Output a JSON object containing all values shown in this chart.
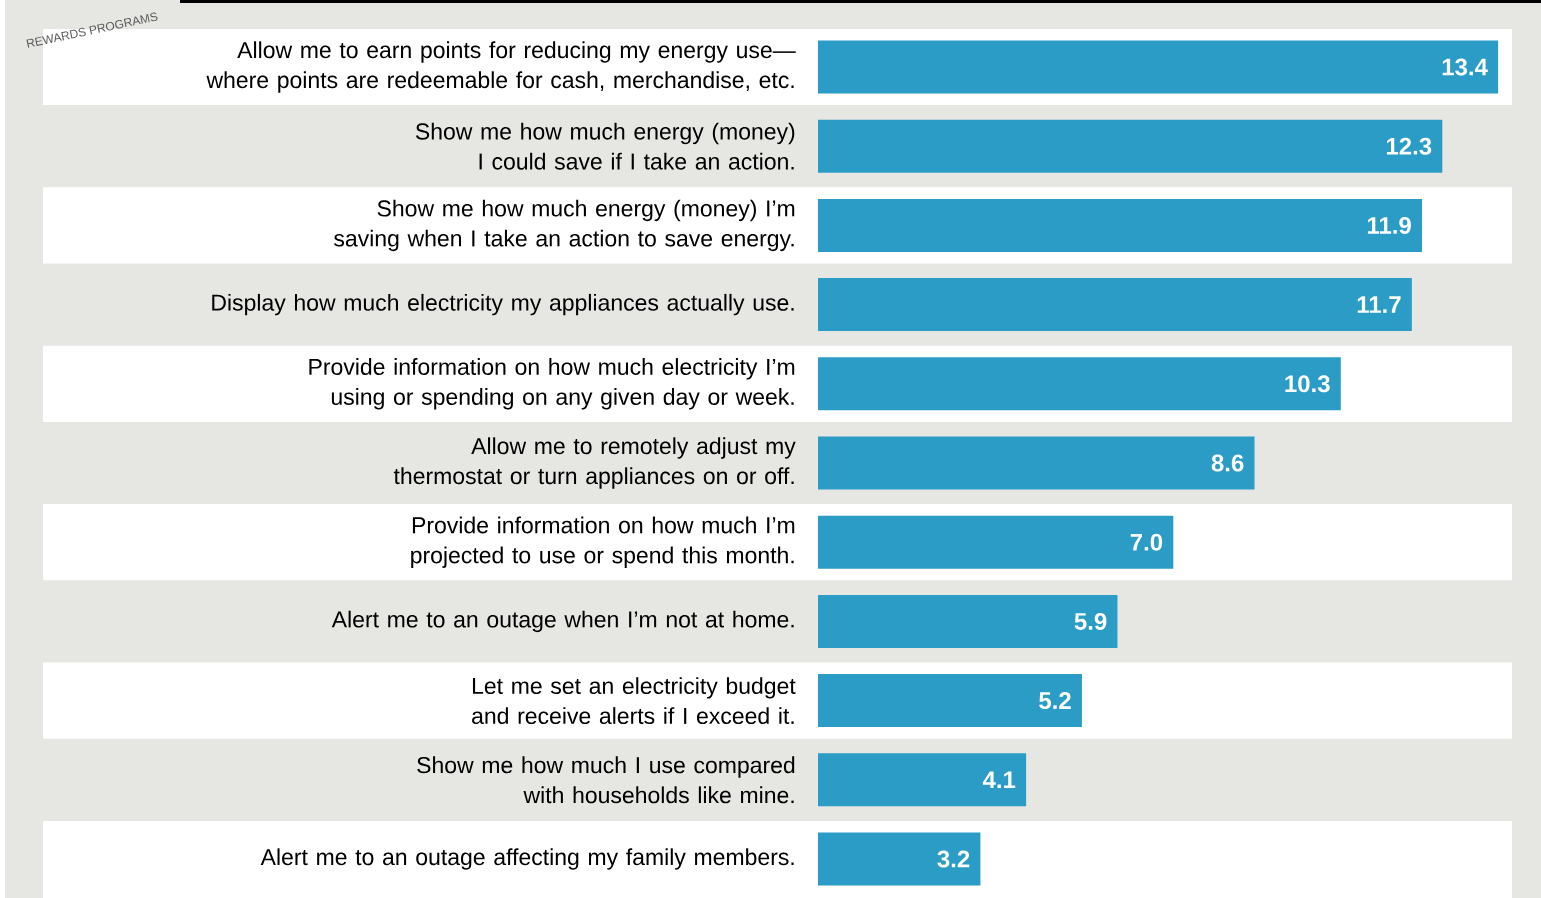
{
  "chart_data": {
    "type": "bar",
    "orientation": "horizontal",
    "color": "#2b9cc6",
    "categories": [
      "Allow me to earn points for reducing my energy use—where points are redeemable for cash, merchandise, etc.",
      "Show me how much energy (money) I could save if I take an action.",
      "Show me how much energy (money) I’m saving when I take an action to save energy.",
      "Display how much electricity my appliances actually use.",
      "Provide information on how much electricity I’m using or spending on any given day or week.",
      "Allow me to remotely adjust my thermostat or turn appliances on or off.",
      "Provide information on how much I’m projected to use or spend this month.",
      "Alert me to an outage when I’m not at home.",
      "Let me set an electricity budget and receive alerts if I exceed it.",
      "Show me how much I use compared with households like mine.",
      "Alert me to an outage affecting my family members."
    ],
    "values": [
      13.4,
      12.3,
      11.9,
      11.7,
      10.3,
      8.6,
      7.0,
      5.9,
      5.2,
      4.1,
      3.2
    ],
    "value_labels": [
      "13.4",
      "12.3",
      "11.9",
      "11.7",
      "10.3",
      "8.6",
      "7.0",
      "5.9",
      "5.2",
      "4.1",
      "3.2"
    ],
    "annotations": [
      "REWARDS PROGRAMS"
    ]
  }
}
